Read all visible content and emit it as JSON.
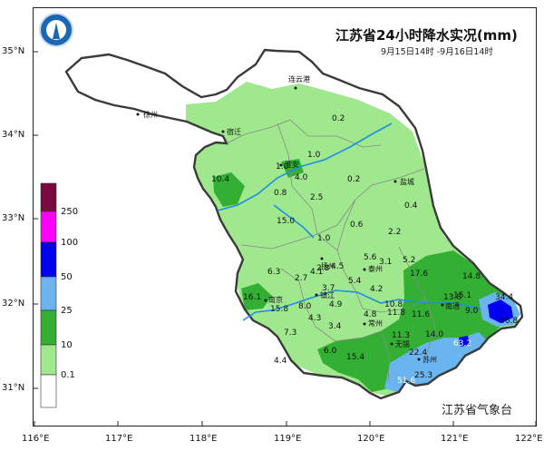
{
  "title": "江苏省24小时降水实况(mm)",
  "subtitle": "9月15日14时 -9月16日14时",
  "agency": "江苏省气象台",
  "lat_labels": [
    "35°N",
    "34°N",
    "33°N",
    "32°N",
    "31°N"
  ],
  "lon_labels": [
    "116°E",
    "117°E",
    "118°E",
    "119°E",
    "120°E",
    "121°E",
    "122°E"
  ],
  "legend": {
    "levels": [
      "250",
      "100",
      "50",
      "25",
      "10",
      "0.1"
    ],
    "colors": [
      "#7a0a3e",
      "#ff00ff",
      "#0000ee",
      "#6ab4ef",
      "#33b033",
      "#a0e88e",
      "#ffffff"
    ]
  },
  "cities": [
    "连云港",
    "徐州",
    "宿迁",
    "淮安",
    "盐城",
    "扬州",
    "泰州",
    "南京",
    "镇江",
    "常州",
    "无锡",
    "苏州",
    "南通"
  ],
  "rain_values": [
    "0.2",
    "1.0",
    "1.0",
    "10.4",
    "4.0",
    "0.2",
    "0.8",
    "2.5",
    "0.4",
    "15.0",
    "0.6",
    "1.0",
    "2.2",
    "6.3",
    "4.5",
    "5.6",
    "5.2",
    "2.7",
    "4.1",
    "3.1",
    "17.6",
    "14.8",
    "2.8",
    "5.4",
    "16.1",
    "3.7",
    "4.2",
    "13.8",
    "15.1",
    "4.9",
    "10.8",
    "34.4",
    "15.8",
    "8.0",
    "9.0",
    "11.8",
    "4.8",
    "11.6",
    "36.8",
    "4.3",
    "3.4",
    "7.3",
    "11.3",
    "14.0",
    "6.0",
    "63.2",
    "22.4",
    "15.4",
    "4.4",
    "25.3",
    "51.6"
  ]
}
